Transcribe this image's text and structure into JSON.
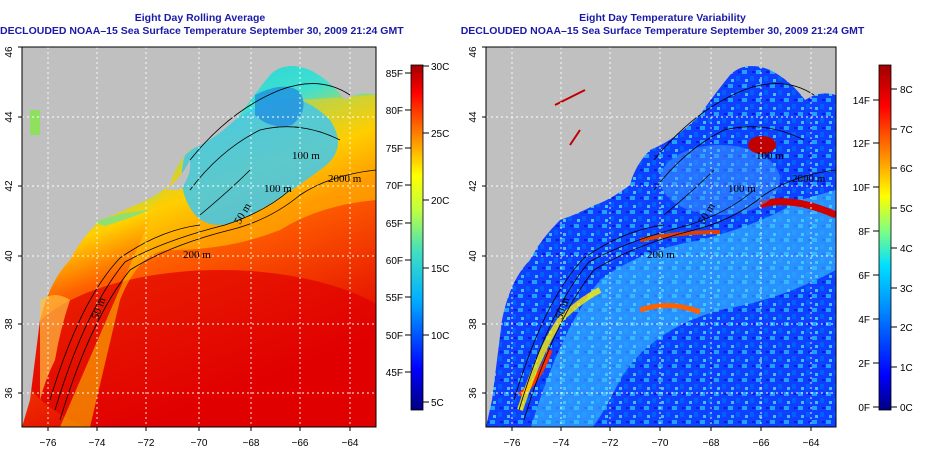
{
  "left_panel": {
    "title1": "Eight Day Rolling Average",
    "title2": "DECLOUDED NOAA–15 Sea Surface Temperature September 30, 2009 21:24 GMT",
    "colorbar": {
      "f_labels": [
        "85F",
        "80F",
        "75F",
        "70F",
        "65F",
        "60F",
        "55F",
        "50F",
        "45F"
      ],
      "c_labels": [
        "30C",
        "25C",
        "20C",
        "15C",
        "10C",
        "5C"
      ]
    },
    "contour_labels": [
      "100 m",
      "100 m",
      "50 m",
      "2000 m",
      "200 m",
      "50 m"
    ]
  },
  "right_panel": {
    "title1": "Eight Day Temperature Variability",
    "title2": "DECLOUDED NOAA–15 Sea Surface Temperature September 30, 2009 21:24 GMT",
    "colorbar": {
      "f_labels": [
        "14F",
        "12F",
        "10F",
        "8F",
        "6F",
        "4F",
        "2F",
        "0F"
      ],
      "c_labels": [
        "8C",
        "7C",
        "6C",
        "5C",
        "4C",
        "3C",
        "2C",
        "1C",
        "0C"
      ]
    },
    "contour_labels": [
      "100 m",
      "100 m",
      "50 m",
      "2000 m",
      "200 m",
      "50 m"
    ]
  },
  "axes": {
    "lon_labels": [
      "−76",
      "−74",
      "−72",
      "−70",
      "−68",
      "−66",
      "−64"
    ],
    "lat_labels": [
      "46",
      "44",
      "42",
      "40",
      "38",
      "36"
    ]
  },
  "colors": {
    "land": "#c0c0c0",
    "title": "#1a1aa8"
  }
}
